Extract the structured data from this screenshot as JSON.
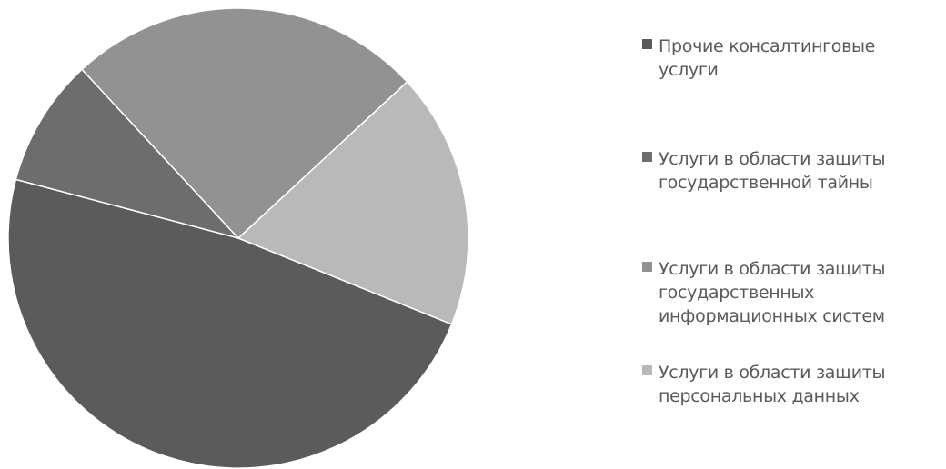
{
  "chart_data": {
    "type": "pie",
    "title": "",
    "slices": [
      {
        "label": "Прочие консалтинговые услуги",
        "lines": [
          "Прочие консалтинговые",
          "услуги"
        ],
        "value": 48,
        "color": "#5b5b5b"
      },
      {
        "label": "Услуги в области защиты государственной тайны",
        "lines": [
          "Услуги в области защиты",
          "государственной тайны"
        ],
        "value": 9,
        "color": "#6d6d6d"
      },
      {
        "label": "Услуги в области защиты государственных информационных систем",
        "lines": [
          "Услуги в области защиты",
          "государственных",
          "информационных систем"
        ],
        "value": 25,
        "color": "#929292"
      },
      {
        "label": "Услуги в области защиты персональных данных",
        "lines": [
          "Услуги в области защиты",
          "персональных данных"
        ],
        "value": 18,
        "color": "#b9b9b9"
      }
    ],
    "legend_position": "right",
    "value_labels_shown": false
  }
}
